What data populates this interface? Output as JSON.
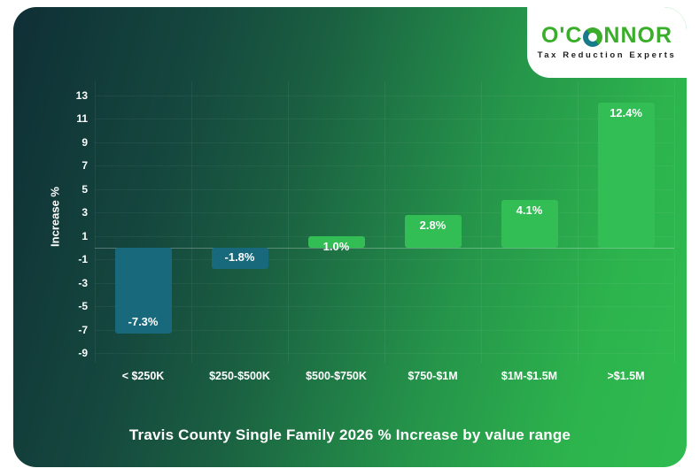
{
  "logo": {
    "text_before_icon": "O'C",
    "text_after_icon": "NNOR",
    "tagline": "Tax Reduction Experts",
    "brand_green": "#3aad2b",
    "brand_teal": "#177b8a"
  },
  "chart_data": {
    "type": "bar",
    "title": "Travis County Single Family 2026 % Increase by value range",
    "ylabel": "Increase %",
    "categories": [
      "< $250K",
      "$250-$500K",
      "$500-$750K",
      "$750-$1M",
      "$1M-$1.5M",
      ">$1.5M"
    ],
    "values": [
      -7.3,
      -1.8,
      1.0,
      2.8,
      4.1,
      12.4
    ],
    "labels": [
      "-7.3%",
      "-1.8%",
      "1.0%",
      "2.8%",
      "4.1%",
      "12.4%"
    ],
    "yticks": [
      13,
      11,
      9,
      7,
      5,
      3,
      1,
      -1,
      -3,
      -5,
      -7,
      -9
    ],
    "ylim": [
      -9.8,
      14.2
    ],
    "grid": true,
    "legend": "none",
    "negative_color": "#17697b",
    "positive_color": "#32bd55",
    "background_gradient": [
      "#0f2f36",
      "#2fbb4f"
    ]
  }
}
